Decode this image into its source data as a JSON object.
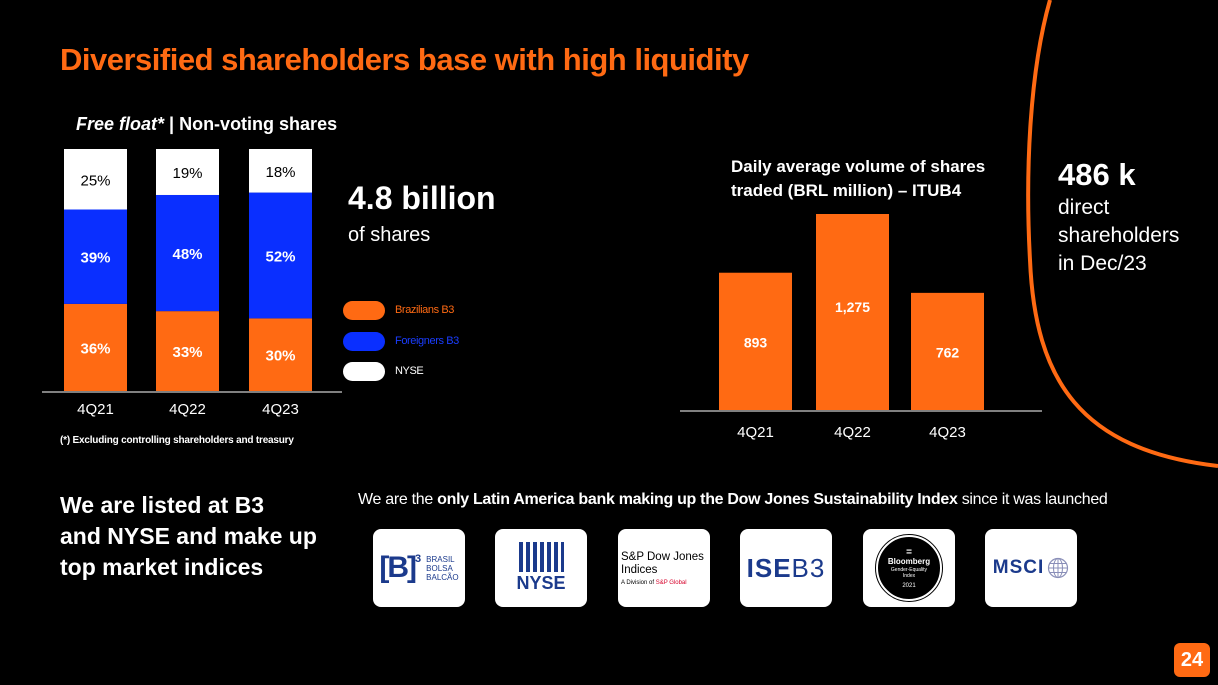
{
  "title": "Diversified shareholders base with high liquidity",
  "free_float": {
    "title_italic": "Free float*",
    "title_rest": " | Non-voting shares",
    "headline_value": "4.8 billion",
    "headline_sub": "of shares",
    "footnote": "(*) Excluding  controlling shareholders and treasury"
  },
  "volume": {
    "title_line1": "Daily average volume of shares",
    "title_line2": "traded (BRL million) – ITUB4"
  },
  "shareholders": {
    "value": "486 k",
    "line1": "direct",
    "line2": "shareholders",
    "line3": "in Dec/23"
  },
  "listed": {
    "line1": "We are listed at B3",
    "line2": "and NYSE and make up",
    "line3": "top market indices"
  },
  "djsi": {
    "pre": "We are the ",
    "bold": "only Latin America bank making up the Dow Jones Sustainability Index",
    "post": " since it was launched"
  },
  "logos": {
    "b3": {
      "mark": "[B]",
      "sup": "3",
      "line1": "BRASIL",
      "line2": "BOLSA",
      "line3": "BALCÃO"
    },
    "nyse": {
      "text": "NYSE"
    },
    "spdji": {
      "line1": "S&P Dow Jones",
      "line2": "Indices",
      "sub_pre": "A Division of ",
      "sub_brand": "S&P Global"
    },
    "iseb3": {
      "text_a": "ISE",
      "text_b": "B3"
    },
    "bloomberg": {
      "sym": "=",
      "name": "Bloomberg",
      "line1": "Gender-Equality",
      "line2": "Index",
      "year": "2021"
    },
    "msci": {
      "text": "MSCI"
    }
  },
  "page_number": "24",
  "colors": {
    "accent": "#ff6a13",
    "blue": "#0a2fff",
    "white": "#ffffff",
    "background": "#000000"
  },
  "chart_data": [
    {
      "type": "bar",
      "stacked": true,
      "percent": true,
      "categories": [
        "4Q21",
        "4Q22",
        "4Q23"
      ],
      "series": [
        {
          "name": "Brazilians B3",
          "color": "#ff6a13",
          "values": [
            36,
            33,
            30
          ],
          "labels": [
            "36%",
            "33%",
            "30%"
          ]
        },
        {
          "name": "Foreigners B3",
          "color": "#0a2fff",
          "values": [
            39,
            48,
            52
          ],
          "labels": [
            "39%",
            "48%",
            "52%"
          ]
        },
        {
          "name": "NYSE",
          "color": "#ffffff",
          "values": [
            25,
            19,
            18
          ],
          "labels": [
            "25%",
            "19%",
            "18%"
          ]
        }
      ],
      "legend": "right"
    },
    {
      "type": "bar",
      "title": "Daily average volume of shares traded (BRL million) – ITUB4",
      "categories": [
        "4Q21",
        "4Q22",
        "4Q23"
      ],
      "values": [
        893,
        1275,
        762
      ],
      "labels": [
        "893",
        "1,275",
        "762"
      ],
      "color": "#ff6a13",
      "ylim": [
        0,
        1275
      ]
    }
  ]
}
